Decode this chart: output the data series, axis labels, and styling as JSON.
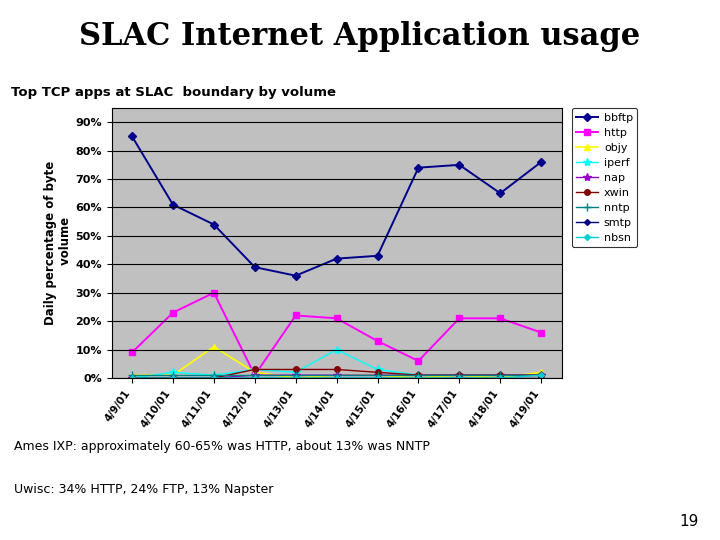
{
  "title": "SLAC Internet Application usage",
  "subtitle": "Top TCP apps at SLAC  boundary by volume",
  "ylabel": "Daily percentage of byte\n volume",
  "fig_bg": "#ffffff",
  "title_bg": "#aaddee",
  "chart_bg": "#c0c0c0",
  "x_labels": [
    "4/9/01",
    "4/10/01",
    "4/11/01",
    "4/12/01",
    "4/13/01",
    "4/14/01",
    "4/15/01",
    "4/16/01",
    "4/17/01",
    "4/18/01",
    "4/19/01"
  ],
  "series": [
    {
      "name": "bbftp",
      "color": "#00008b",
      "marker": "D",
      "markersize": 4,
      "linewidth": 1.4,
      "values": [
        85,
        61,
        54,
        39,
        36,
        42,
        43,
        74,
        75,
        65,
        76
      ]
    },
    {
      "name": "http",
      "color": "#ff00ff",
      "marker": "s",
      "markersize": 5,
      "linewidth": 1.4,
      "values": [
        9,
        23,
        30,
        1,
        22,
        21,
        13,
        6,
        21,
        21,
        16
      ]
    },
    {
      "name": "objy",
      "color": "#ffff00",
      "marker": "^",
      "markersize": 5,
      "linewidth": 1.2,
      "values": [
        1,
        1,
        11,
        2,
        0,
        1,
        1,
        0,
        1,
        0,
        2
      ]
    },
    {
      "name": "iperf",
      "color": "#00ffff",
      "marker": "*",
      "markersize": 6,
      "linewidth": 1.0,
      "values": [
        0,
        2,
        1,
        3,
        2,
        10,
        3,
        1,
        1,
        1,
        1
      ]
    },
    {
      "name": "nap",
      "color": "#9900cc",
      "marker": "*",
      "markersize": 6,
      "linewidth": 1.0,
      "values": [
        0,
        0,
        0,
        1,
        1,
        1,
        1,
        1,
        1,
        1,
        1
      ]
    },
    {
      "name": "xwin",
      "color": "#800000",
      "marker": "o",
      "markersize": 4,
      "linewidth": 1.0,
      "values": [
        0,
        0,
        0,
        3,
        3,
        3,
        2,
        1,
        1,
        1,
        1
      ]
    },
    {
      "name": "nntp",
      "color": "#008080",
      "marker": "+",
      "markersize": 6,
      "linewidth": 1.0,
      "values": [
        1,
        1,
        1,
        1,
        1,
        1,
        1,
        1,
        1,
        1,
        1
      ]
    },
    {
      "name": "smtp",
      "color": "#000080",
      "marker": "D",
      "markersize": 3,
      "linewidth": 1.0,
      "values": [
        0,
        0,
        0,
        0,
        0,
        0,
        0,
        0,
        0,
        0,
        0
      ]
    },
    {
      "name": "nbsn",
      "color": "#00ced1",
      "marker": "D",
      "markersize": 3,
      "linewidth": 1.0,
      "values": [
        0,
        0,
        0,
        0,
        0,
        0,
        0,
        0,
        0,
        0,
        1
      ]
    }
  ],
  "footer_line1": "Ames IXP: approximately 60-65% was HTTP, about 13% was NNTP",
  "footer_line2": "Uwisc: 34% HTTP, 24% FTP, 13% Napster",
  "page_number": "19",
  "ylim": [
    0,
    95
  ],
  "yticks": [
    0,
    10,
    20,
    30,
    40,
    50,
    60,
    70,
    80,
    90
  ],
  "ytick_labels": [
    "0%",
    "10%",
    "20%",
    "30%",
    "40%",
    "50%",
    "60%",
    "70%",
    "80%",
    "90%"
  ]
}
